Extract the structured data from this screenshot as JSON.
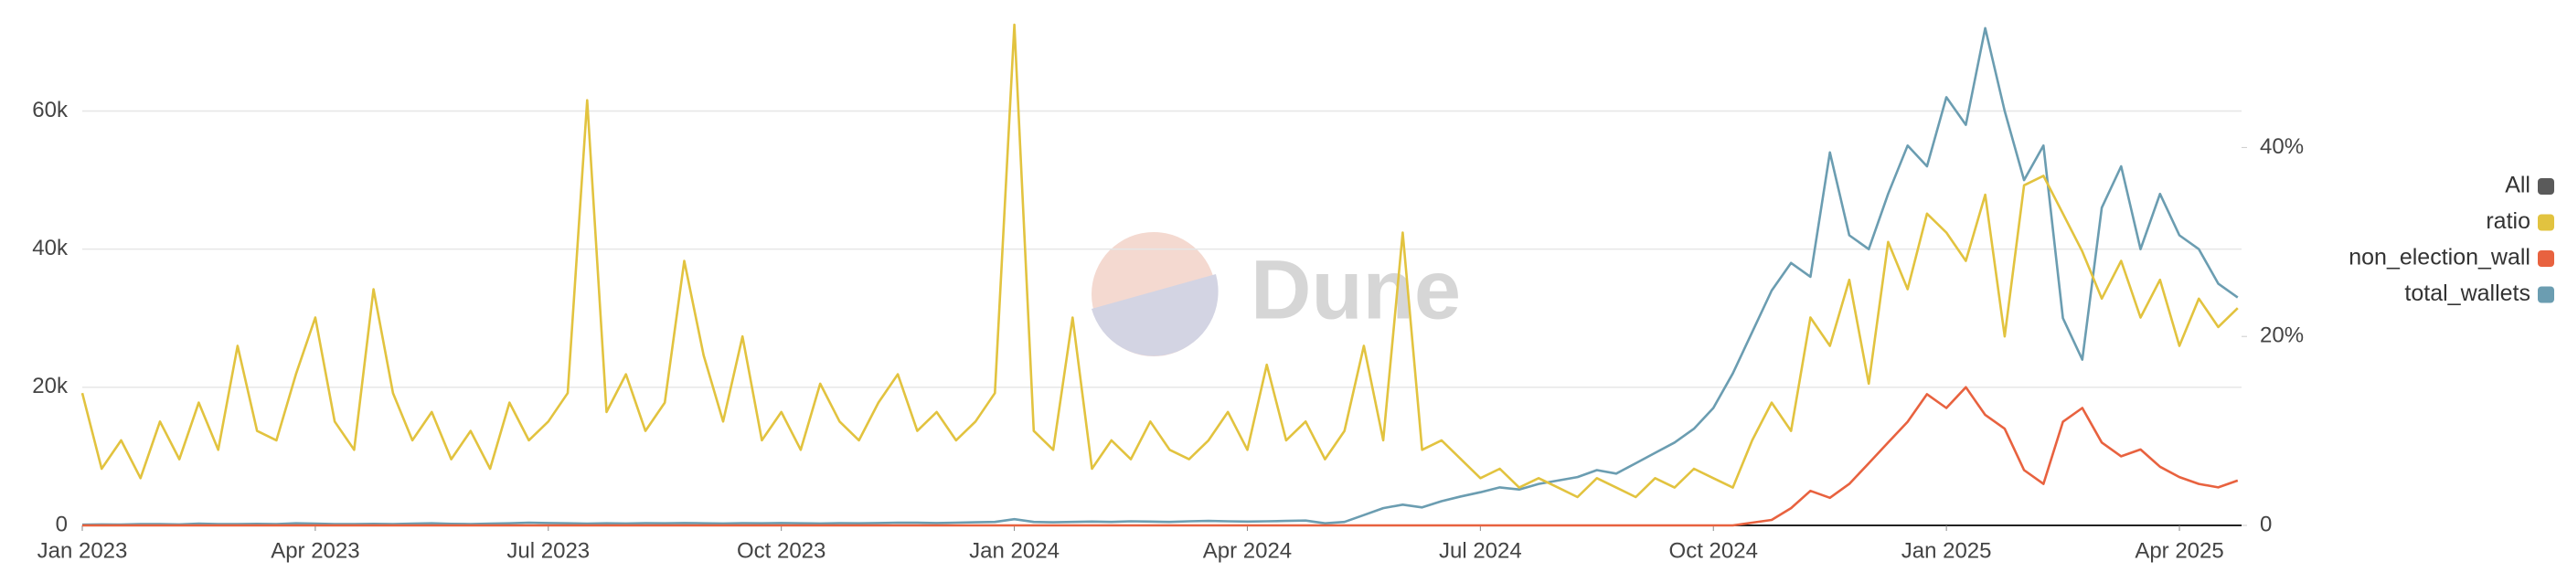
{
  "chart_data": {
    "type": "line",
    "watermark": "Dune",
    "x": [
      0,
      0.25,
      0.5,
      0.75,
      1,
      1.25,
      1.5,
      1.75,
      2,
      2.25,
      2.5,
      2.75,
      3,
      3.25,
      3.5,
      3.75,
      4,
      4.25,
      4.5,
      4.75,
      5,
      5.25,
      5.5,
      5.75,
      6,
      6.25,
      6.5,
      6.75,
      7,
      7.25,
      7.5,
      7.75,
      8,
      8.25,
      8.5,
      8.75,
      9,
      9.25,
      9.5,
      9.75,
      10,
      10.25,
      10.5,
      10.75,
      11,
      11.25,
      11.5,
      11.75,
      12,
      12.25,
      12.5,
      12.75,
      13,
      13.25,
      13.5,
      13.75,
      14,
      14.25,
      14.5,
      14.75,
      15,
      15.25,
      15.5,
      15.75,
      16,
      16.25,
      16.5,
      16.75,
      17,
      17.25,
      17.5,
      17.75,
      18,
      18.25,
      18.5,
      18.75,
      19,
      19.25,
      19.5,
      19.75,
      20,
      20.25,
      20.5,
      20.75,
      21,
      21.25,
      21.5,
      21.75,
      22,
      22.25,
      22.5,
      22.75,
      23,
      23.25,
      23.5,
      23.75,
      24,
      24.25,
      24.5,
      24.75,
      25,
      25.25,
      25.5,
      25.75,
      26,
      26.25,
      26.5,
      26.75,
      27,
      27.25,
      27.5,
      27.75
    ],
    "xlim": [
      0,
      27.8
    ],
    "xticks": [
      {
        "value": 0,
        "label": "Jan 2023"
      },
      {
        "value": 3,
        "label": "Apr 2023"
      },
      {
        "value": 6,
        "label": "Jul 2023"
      },
      {
        "value": 9,
        "label": "Oct 2023"
      },
      {
        "value": 12,
        "label": "Jan 2024"
      },
      {
        "value": 15,
        "label": "Apr 2024"
      },
      {
        "value": 18,
        "label": "Jul 2024"
      },
      {
        "value": 21,
        "label": "Oct 2024"
      },
      {
        "value": 24,
        "label": "Jan 2025"
      },
      {
        "value": 27,
        "label": "Apr 2025"
      }
    ],
    "ylim": [
      0,
      72500
    ],
    "yticks": [
      0,
      {
        "value": 20000,
        "label": "20k"
      },
      {
        "value": 40000,
        "label": "40k"
      },
      {
        "value": 60000,
        "label": "60k"
      }
    ],
    "y2lim": [
      0,
      53
    ],
    "y2ticks": [
      0,
      {
        "value": 20,
        "label": "20%"
      },
      {
        "value": 40,
        "label": "40%"
      }
    ],
    "grid": true,
    "legend_position": "right",
    "legend_only": [
      {
        "name": "All",
        "color": "#5a5a5a"
      }
    ],
    "series": [
      {
        "name": "ratio",
        "color": "#e2c33f",
        "axis": "y2",
        "values": [
          14,
          6,
          9,
          5,
          11,
          7,
          13,
          8,
          19,
          10,
          9,
          16,
          22,
          11,
          8,
          25,
          14,
          9,
          12,
          7,
          10,
          6,
          13,
          9,
          11,
          14,
          45,
          12,
          16,
          10,
          13,
          28,
          18,
          11,
          20,
          9,
          12,
          8,
          15,
          11,
          9,
          13,
          16,
          10,
          12,
          9,
          11,
          14,
          53,
          10,
          8,
          22,
          6,
          9,
          7,
          11,
          8,
          7,
          9,
          12,
          8,
          17,
          9,
          11,
          7,
          10,
          19,
          9,
          31,
          8,
          9,
          7,
          5,
          6,
          4,
          5,
          4,
          3,
          5,
          4,
          3,
          5,
          4,
          6,
          5,
          4,
          9,
          13,
          10,
          22,
          19,
          26,
          15,
          30,
          25,
          33,
          31,
          28,
          35,
          20,
          36,
          37,
          33,
          29,
          24,
          28,
          22,
          26,
          19,
          24,
          21,
          23
        ]
      },
      {
        "name": "non_election_wall",
        "color": "#e8623f",
        "values": [
          0,
          0,
          0,
          0,
          0,
          0,
          0,
          0,
          0,
          0,
          0,
          0,
          0,
          0,
          0,
          0,
          0,
          0,
          0,
          0,
          0,
          0,
          0,
          0,
          0,
          0,
          0,
          0,
          0,
          0,
          0,
          0,
          0,
          0,
          0,
          0,
          0,
          0,
          0,
          0,
          0,
          0,
          0,
          0,
          0,
          0,
          0,
          0,
          0,
          0,
          0,
          0,
          0,
          0,
          0,
          0,
          0,
          0,
          0,
          0,
          0,
          0,
          0,
          0,
          0,
          0,
          0,
          0,
          0,
          0,
          0,
          0,
          0,
          0,
          0,
          0,
          0,
          0,
          0,
          0,
          0,
          0,
          0,
          0,
          0,
          0,
          400,
          800,
          2500,
          5000,
          4000,
          6000,
          9000,
          12000,
          15000,
          19000,
          17000,
          20000,
          16000,
          14000,
          8000,
          6000,
          15000,
          17000,
          12000,
          10000,
          11000,
          8500,
          7000,
          6000,
          5500,
          6500
        ]
      },
      {
        "name": "total_wallets",
        "color": "#6b9db1",
        "values": [
          100,
          150,
          120,
          200,
          180,
          150,
          250,
          200,
          180,
          220,
          200,
          300,
          250,
          200,
          180,
          220,
          200,
          250,
          300,
          220,
          200,
          250,
          300,
          400,
          350,
          300,
          250,
          300,
          280,
          320,
          300,
          350,
          300,
          280,
          320,
          300,
          350,
          300,
          280,
          320,
          300,
          350,
          400,
          380,
          350,
          400,
          450,
          500,
          900,
          500,
          450,
          500,
          550,
          500,
          600,
          550,
          500,
          600,
          650,
          600,
          550,
          600,
          650,
          700,
          300,
          500,
          1500,
          2500,
          3000,
          2600,
          3500,
          4200,
          4800,
          5500,
          5200,
          6000,
          6500,
          7000,
          8000,
          7500,
          9000,
          10500,
          12000,
          14000,
          17000,
          22000,
          28000,
          34000,
          38000,
          36000,
          54000,
          42000,
          40000,
          48000,
          55000,
          52000,
          62000,
          58000,
          72000,
          60000,
          50000,
          55000,
          30000,
          24000,
          46000,
          52000,
          40000,
          48000,
          42000,
          40000,
          35000,
          33000
        ]
      }
    ]
  }
}
